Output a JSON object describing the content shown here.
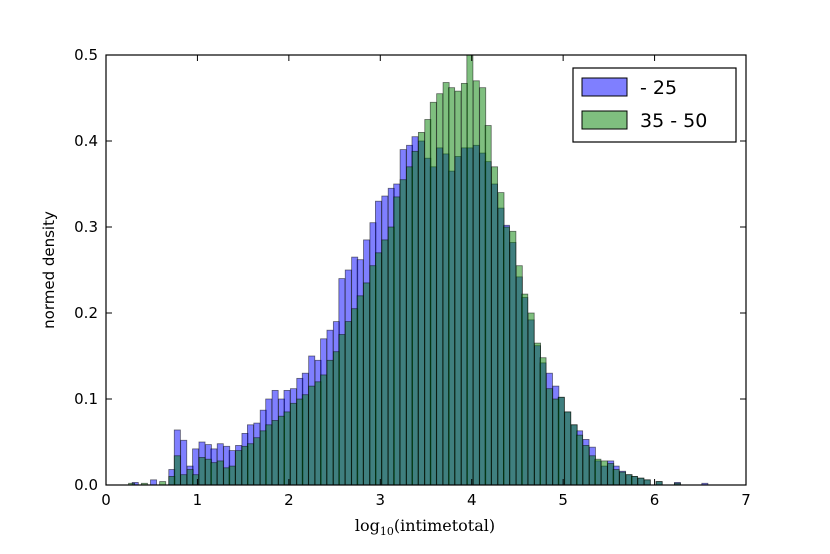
{
  "chart_data": {
    "type": "bar",
    "title": "",
    "xlabel_prefix": "log",
    "xlabel_sub": "10",
    "xlabel_rest": "(intimetotal)",
    "ylabel": "normed density",
    "xlim": [
      0,
      7
    ],
    "ylim": [
      0,
      0.5
    ],
    "xticks": [
      "0",
      "1",
      "2",
      "3",
      "4",
      "5",
      "6",
      "7"
    ],
    "yticks": [
      "0.0",
      "0.1",
      "0.2",
      "0.3",
      "0.4",
      "0.5"
    ],
    "grid": false,
    "legend_position": "top-right",
    "bin_width": 0.0666,
    "series": [
      {
        "name": " - 25",
        "color": "#0000ff",
        "alpha": 0.5,
        "values": [
          [
            0.32,
            0.003
          ],
          [
            0.52,
            0.006
          ],
          [
            0.72,
            0.018
          ],
          [
            0.78,
            0.064
          ],
          [
            0.85,
            0.052
          ],
          [
            0.92,
            0.022
          ],
          [
            0.98,
            0.042
          ],
          [
            1.05,
            0.05
          ],
          [
            1.12,
            0.047
          ],
          [
            1.18,
            0.042
          ],
          [
            1.25,
            0.048
          ],
          [
            1.32,
            0.045
          ],
          [
            1.38,
            0.04
          ],
          [
            1.45,
            0.046
          ],
          [
            1.52,
            0.06
          ],
          [
            1.58,
            0.07
          ],
          [
            1.65,
            0.072
          ],
          [
            1.72,
            0.087
          ],
          [
            1.78,
            0.1
          ],
          [
            1.85,
            0.11
          ],
          [
            1.92,
            0.1
          ],
          [
            1.98,
            0.11
          ],
          [
            2.05,
            0.112
          ],
          [
            2.12,
            0.124
          ],
          [
            2.18,
            0.13
          ],
          [
            2.25,
            0.15
          ],
          [
            2.32,
            0.145
          ],
          [
            2.38,
            0.17
          ],
          [
            2.45,
            0.18
          ],
          [
            2.52,
            0.19
          ],
          [
            2.58,
            0.24
          ],
          [
            2.65,
            0.25
          ],
          [
            2.72,
            0.265
          ],
          [
            2.78,
            0.262
          ],
          [
            2.85,
            0.285
          ],
          [
            2.92,
            0.305
          ],
          [
            2.98,
            0.33
          ],
          [
            3.05,
            0.336
          ],
          [
            3.12,
            0.345
          ],
          [
            3.18,
            0.35
          ],
          [
            3.25,
            0.39
          ],
          [
            3.32,
            0.395
          ],
          [
            3.38,
            0.405
          ],
          [
            3.45,
            0.4
          ],
          [
            3.52,
            0.38
          ],
          [
            3.58,
            0.37
          ],
          [
            3.65,
            0.392
          ],
          [
            3.72,
            0.385
          ],
          [
            3.78,
            0.365
          ],
          [
            3.85,
            0.382
          ],
          [
            3.92,
            0.392
          ],
          [
            3.98,
            0.392
          ],
          [
            4.05,
            0.395
          ],
          [
            4.12,
            0.386
          ],
          [
            4.18,
            0.376
          ],
          [
            4.25,
            0.35
          ],
          [
            4.32,
            0.322
          ],
          [
            4.38,
            0.302
          ],
          [
            4.45,
            0.282
          ],
          [
            4.52,
            0.242
          ],
          [
            4.58,
            0.218
          ],
          [
            4.65,
            0.192
          ],
          [
            4.72,
            0.162
          ],
          [
            4.78,
            0.142
          ],
          [
            4.85,
            0.13
          ],
          [
            4.92,
            0.115
          ],
          [
            4.98,
            0.102
          ],
          [
            5.05,
            0.085
          ],
          [
            5.12,
            0.07
          ],
          [
            5.18,
            0.063
          ],
          [
            5.25,
            0.053
          ],
          [
            5.32,
            0.044
          ],
          [
            5.38,
            0.028
          ],
          [
            5.45,
            0.022
          ],
          [
            5.52,
            0.028
          ],
          [
            5.58,
            0.022
          ],
          [
            5.65,
            0.016
          ],
          [
            5.72,
            0.012
          ],
          [
            5.78,
            0.01
          ],
          [
            5.85,
            0.008
          ],
          [
            5.92,
            0.006
          ],
          [
            6.05,
            0.004
          ],
          [
            6.25,
            0.003
          ],
          [
            6.55,
            0.002
          ]
        ]
      },
      {
        "name": "35 - 50",
        "color": "#008000",
        "alpha": 0.5,
        "values": [
          [
            0.28,
            0.002
          ],
          [
            0.42,
            0.002
          ],
          [
            0.62,
            0.004
          ],
          [
            0.72,
            0.01
          ],
          [
            0.78,
            0.034
          ],
          [
            0.85,
            0.012
          ],
          [
            0.92,
            0.018
          ],
          [
            0.98,
            0.012
          ],
          [
            1.05,
            0.032
          ],
          [
            1.12,
            0.03
          ],
          [
            1.18,
            0.026
          ],
          [
            1.25,
            0.028
          ],
          [
            1.32,
            0.02
          ],
          [
            1.38,
            0.022
          ],
          [
            1.45,
            0.04
          ],
          [
            1.52,
            0.045
          ],
          [
            1.58,
            0.048
          ],
          [
            1.65,
            0.055
          ],
          [
            1.72,
            0.063
          ],
          [
            1.78,
            0.07
          ],
          [
            1.85,
            0.075
          ],
          [
            1.92,
            0.08
          ],
          [
            1.98,
            0.085
          ],
          [
            2.05,
            0.095
          ],
          [
            2.12,
            0.1
          ],
          [
            2.18,
            0.105
          ],
          [
            2.25,
            0.115
          ],
          [
            2.32,
            0.12
          ],
          [
            2.38,
            0.128
          ],
          [
            2.45,
            0.145
          ],
          [
            2.52,
            0.155
          ],
          [
            2.58,
            0.175
          ],
          [
            2.65,
            0.19
          ],
          [
            2.72,
            0.205
          ],
          [
            2.78,
            0.22
          ],
          [
            2.85,
            0.235
          ],
          [
            2.92,
            0.255
          ],
          [
            2.98,
            0.27
          ],
          [
            3.05,
            0.285
          ],
          [
            3.12,
            0.3
          ],
          [
            3.18,
            0.335
          ],
          [
            3.25,
            0.355
          ],
          [
            3.32,
            0.37
          ],
          [
            3.38,
            0.388
          ],
          [
            3.45,
            0.41
          ],
          [
            3.52,
            0.425
          ],
          [
            3.58,
            0.445
          ],
          [
            3.65,
            0.455
          ],
          [
            3.72,
            0.468
          ],
          [
            3.78,
            0.462
          ],
          [
            3.85,
            0.458
          ],
          [
            3.92,
            0.467
          ],
          [
            3.98,
            0.5
          ],
          [
            4.05,
            0.47
          ],
          [
            4.12,
            0.462
          ],
          [
            4.18,
            0.418
          ],
          [
            4.25,
            0.37
          ],
          [
            4.32,
            0.34
          ],
          [
            4.38,
            0.3
          ],
          [
            4.45,
            0.295
          ],
          [
            4.52,
            0.255
          ],
          [
            4.58,
            0.222
          ],
          [
            4.65,
            0.2
          ],
          [
            4.72,
            0.165
          ],
          [
            4.78,
            0.148
          ],
          [
            4.85,
            0.112
          ],
          [
            4.92,
            0.1
          ],
          [
            4.98,
            0.102
          ],
          [
            5.05,
            0.085
          ],
          [
            5.12,
            0.07
          ],
          [
            5.18,
            0.058
          ],
          [
            5.25,
            0.046
          ],
          [
            5.32,
            0.034
          ],
          [
            5.38,
            0.03
          ],
          [
            5.45,
            0.028
          ],
          [
            5.52,
            0.025
          ],
          [
            5.58,
            0.018
          ],
          [
            5.65,
            0.015
          ],
          [
            5.72,
            0.012
          ],
          [
            5.78,
            0.01
          ],
          [
            5.85,
            0.008
          ],
          [
            5.92,
            0.006
          ],
          [
            6.05,
            0.004
          ],
          [
            6.25,
            0.002
          ]
        ]
      }
    ]
  }
}
